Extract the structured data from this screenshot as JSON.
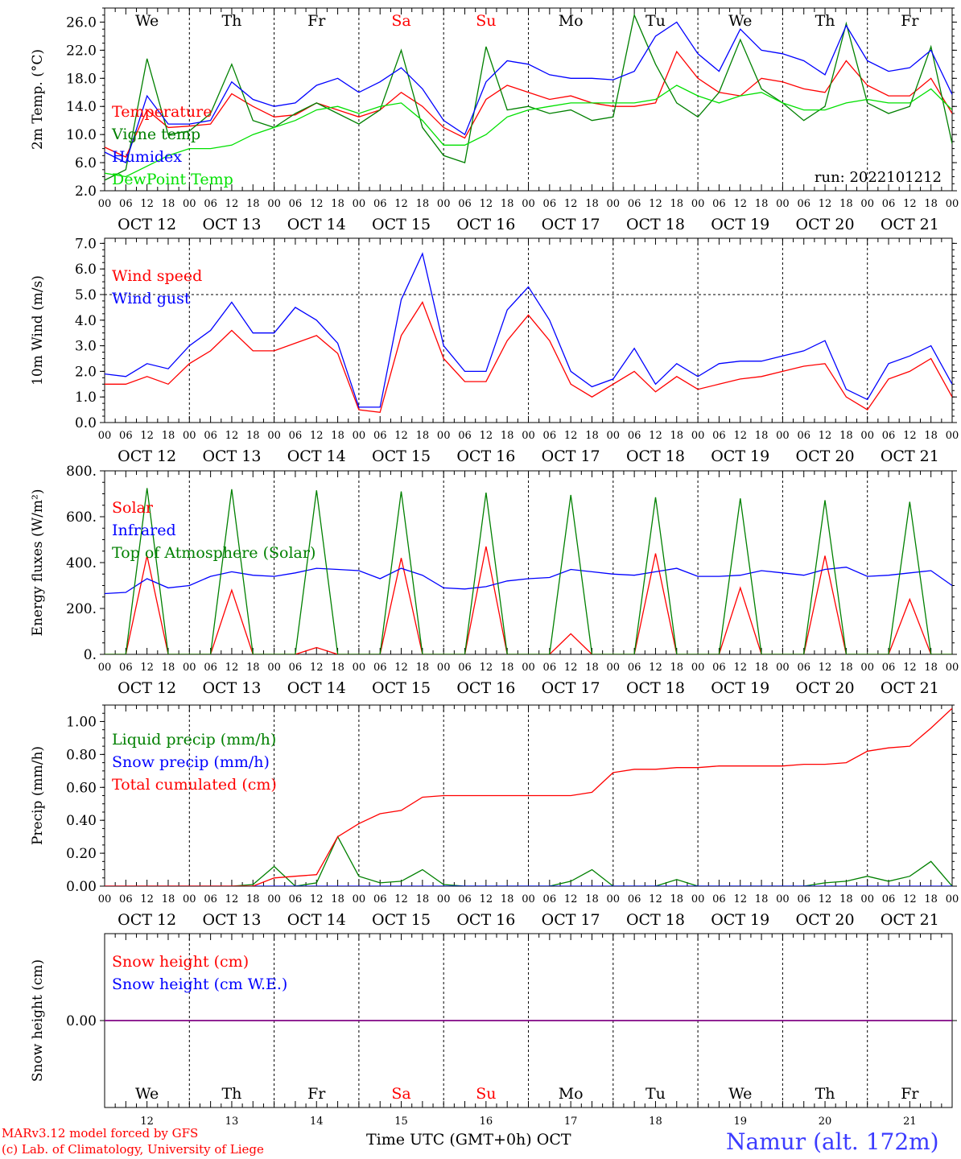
{
  "run_label": "run: 2022101212",
  "station": "Namur (alt. 172m)",
  "credits": [
    "MARv3.12 model forced by GFS",
    "(c) Lab. of Climatology, University of Liege"
  ],
  "x_axis_title": "Time UTC (GMT+0h)",
  "x_axis_month": "OCT",
  "hour_ticks": [
    "00",
    "06",
    "12",
    "18"
  ],
  "end_hour_tick": "00",
  "day_labels": [
    "OCT 12",
    "OCT 13",
    "OCT 14",
    "OCT 15",
    "OCT 16",
    "OCT 17",
    "OCT 18",
    "OCT 19",
    "OCT 20",
    "OCT 21"
  ],
  "weekdays": [
    "We",
    "Th",
    "Fr",
    "Sa",
    "Su",
    "Mo",
    "Tu",
    "We",
    "Th",
    "Fr"
  ],
  "weekday_colors": [
    "#000000",
    "#000000",
    "#000000",
    "#ff0000",
    "#ff0000",
    "#000000",
    "#000000",
    "#000000",
    "#000000",
    "#000000"
  ],
  "day_numbers": [
    "12",
    "13",
    "14",
    "15",
    "16",
    "17",
    "18",
    "19",
    "20",
    "21"
  ],
  "colors": {
    "red": "#ff0000",
    "green": "#008000",
    "blue": "#0000ff",
    "lightgreen": "#00e000",
    "purple": "#800080"
  },
  "chart_data": [
    {
      "type": "line",
      "ylabel": "2m Temp. (°C)",
      "ylim": [
        2,
        28
      ],
      "yticks": [
        "2.0",
        "6.0",
        "10.0",
        "14.0",
        "18.0",
        "22.0",
        "26.0"
      ],
      "ytick_values": [
        2,
        6,
        10,
        14,
        18,
        22,
        26
      ],
      "dashed_y": [],
      "legend_location": "left",
      "x": [
        0,
        6,
        12,
        18,
        24,
        30,
        36,
        42,
        48,
        54,
        60,
        66,
        72,
        78,
        84,
        90,
        96,
        102,
        108,
        114,
        120,
        126,
        132,
        138,
        144,
        150,
        156,
        162,
        168,
        174,
        180,
        186,
        192,
        198,
        204,
        210,
        216,
        222,
        228,
        234,
        240
      ],
      "series": [
        {
          "name": "Temperature",
          "color": "#ff0000",
          "values": [
            8.2,
            6.8,
            13.5,
            11.0,
            11.2,
            11.5,
            15.8,
            14.0,
            12.5,
            12.8,
            14.5,
            13.5,
            12.5,
            13.5,
            16.0,
            14.0,
            11.0,
            9.5,
            15.0,
            17.0,
            16.0,
            15.0,
            15.5,
            14.5,
            14.0,
            14.0,
            14.5,
            21.8,
            18.0,
            16.0,
            15.5,
            18.0,
            17.5,
            16.5,
            16.0,
            20.5,
            17.0,
            15.5,
            15.5,
            18.0,
            13.0
          ]
        },
        {
          "name": "Vigne temp",
          "color": "#008000",
          "values": [
            3.5,
            5.0,
            20.8,
            10.0,
            10.5,
            13.0,
            20.0,
            12.0,
            11.0,
            13.0,
            14.5,
            13.0,
            11.5,
            13.5,
            22.0,
            11.0,
            7.0,
            6.0,
            22.5,
            13.5,
            14.0,
            13.0,
            13.5,
            12.0,
            12.5,
            27.0,
            20.0,
            14.5,
            12.5,
            16.0,
            23.5,
            16.5,
            14.5,
            12.0,
            14.0,
            25.8,
            14.5,
            13.0,
            14.0,
            22.5,
            8.7
          ]
        },
        {
          "name": "Humidex",
          "color": "#0000ff",
          "values": [
            7.5,
            6.0,
            15.5,
            11.5,
            11.5,
            12.0,
            17.5,
            15.0,
            14.0,
            14.5,
            17.0,
            18.0,
            16.0,
            17.5,
            19.5,
            16.5,
            12.0,
            10.0,
            17.5,
            20.5,
            20.0,
            18.5,
            18.0,
            18.0,
            17.8,
            19.0,
            24.0,
            26.0,
            21.5,
            19.0,
            25.0,
            22.0,
            21.5,
            20.5,
            18.5,
            25.5,
            20.5,
            19.0,
            19.5,
            22.0,
            15.7
          ]
        },
        {
          "name": "DewPoint Temp",
          "color": "#00e000",
          "values": [
            4.5,
            4.0,
            5.5,
            7.0,
            8.0,
            8.0,
            8.5,
            10.0,
            11.0,
            12.0,
            13.5,
            14.0,
            13.0,
            14.0,
            14.5,
            12.0,
            8.5,
            8.5,
            10.0,
            12.5,
            13.5,
            14.0,
            14.5,
            14.5,
            14.5,
            14.5,
            15.0,
            17.0,
            15.5,
            14.5,
            15.5,
            16.0,
            14.5,
            13.5,
            13.5,
            14.5,
            15.0,
            14.5,
            14.5,
            16.5,
            13.5
          ]
        }
      ]
    },
    {
      "type": "line",
      "ylabel": "10m Wind (m/s)",
      "ylim": [
        0,
        7.2
      ],
      "yticks": [
        "0.0",
        "1.0",
        "2.0",
        "3.0",
        "4.0",
        "5.0",
        "6.0",
        "7.0"
      ],
      "ytick_values": [
        0,
        1,
        2,
        3,
        4,
        5,
        6,
        7
      ],
      "dashed_y": [
        5
      ],
      "legend_location": "left",
      "x": [
        0,
        6,
        12,
        18,
        24,
        30,
        36,
        42,
        48,
        54,
        60,
        66,
        72,
        78,
        84,
        90,
        96,
        102,
        108,
        114,
        120,
        126,
        132,
        138,
        144,
        150,
        156,
        162,
        168,
        174,
        180,
        186,
        192,
        198,
        204,
        210,
        216,
        222,
        228,
        234,
        240
      ],
      "series": [
        {
          "name": "Wind speed",
          "color": "#ff0000",
          "values": [
            1.5,
            1.5,
            1.8,
            1.5,
            2.3,
            2.8,
            3.6,
            2.8,
            2.8,
            3.1,
            3.4,
            2.7,
            0.5,
            0.4,
            3.4,
            4.7,
            2.5,
            1.6,
            1.6,
            3.2,
            4.2,
            3.2,
            1.5,
            1.0,
            1.5,
            2.0,
            1.2,
            1.8,
            1.3,
            1.5,
            1.7,
            1.8,
            2.0,
            2.2,
            2.3,
            1.0,
            0.5,
            1.7,
            2.0,
            2.5,
            1.0
          ]
        },
        {
          "name": "Wind gust",
          "color": "#0000ff",
          "values": [
            1.9,
            1.8,
            2.3,
            2.1,
            3.0,
            3.6,
            4.7,
            3.5,
            3.5,
            4.5,
            4.0,
            3.1,
            0.6,
            0.6,
            4.8,
            6.6,
            3.0,
            2.0,
            2.0,
            4.4,
            5.3,
            4.0,
            2.0,
            1.4,
            1.7,
            2.9,
            1.5,
            2.3,
            1.8,
            2.3,
            2.4,
            2.4,
            2.6,
            2.8,
            3.2,
            1.3,
            0.9,
            2.3,
            2.6,
            3.0,
            1.5
          ]
        }
      ]
    },
    {
      "type": "line",
      "ylabel": "Energy fluxes (W/m²)",
      "ylim": [
        0,
        800
      ],
      "yticks": [
        "0.",
        "200.",
        "400.",
        "600.",
        "800."
      ],
      "ytick_values": [
        0,
        200,
        400,
        600,
        800
      ],
      "dashed_y": [],
      "legend_location": "left",
      "x": [
        0,
        6,
        12,
        18,
        24,
        30,
        36,
        42,
        48,
        54,
        60,
        66,
        72,
        78,
        84,
        90,
        96,
        102,
        108,
        114,
        120,
        126,
        132,
        138,
        144,
        150,
        156,
        162,
        168,
        174,
        180,
        186,
        192,
        198,
        204,
        210,
        216,
        222,
        228,
        234,
        240
      ],
      "series": [
        {
          "name": "Solar",
          "color": "#ff0000",
          "values": [
            0,
            0,
            430,
            0,
            0,
            0,
            280,
            0,
            0,
            0,
            30,
            0,
            0,
            0,
            420,
            0,
            0,
            0,
            470,
            0,
            0,
            0,
            90,
            0,
            0,
            0,
            440,
            0,
            0,
            0,
            290,
            0,
            0,
            0,
            430,
            0,
            0,
            0,
            240,
            0,
            0
          ]
        },
        {
          "name": "Infrared",
          "color": "#0000ff",
          "values": [
            265,
            270,
            330,
            290,
            300,
            340,
            360,
            345,
            340,
            355,
            375,
            370,
            365,
            330,
            375,
            345,
            290,
            285,
            295,
            320,
            330,
            335,
            370,
            360,
            350,
            345,
            360,
            375,
            340,
            340,
            345,
            365,
            355,
            345,
            370,
            380,
            340,
            345,
            355,
            365,
            300
          ]
        },
        {
          "name": "Top of Atmosphere (Solar)",
          "color": "#008000",
          "values": [
            0,
            0,
            725,
            0,
            0,
            0,
            720,
            0,
            0,
            0,
            715,
            0,
            0,
            0,
            710,
            0,
            0,
            0,
            705,
            0,
            0,
            0,
            695,
            0,
            0,
            0,
            685,
            0,
            0,
            0,
            680,
            0,
            0,
            0,
            672,
            0,
            0,
            0,
            665,
            0,
            0
          ]
        }
      ]
    },
    {
      "type": "line",
      "ylabel": "Precip (mm/h)",
      "ylim": [
        0,
        1.1
      ],
      "yticks": [
        "0.00",
        "0.20",
        "0.40",
        "0.60",
        "0.80",
        "1.00"
      ],
      "ytick_values": [
        0,
        0.2,
        0.4,
        0.6,
        0.8,
        1.0
      ],
      "dashed_y": [],
      "legend_location": "left",
      "x": [
        0,
        6,
        12,
        18,
        24,
        30,
        36,
        42,
        48,
        54,
        60,
        66,
        72,
        78,
        84,
        90,
        96,
        102,
        108,
        114,
        120,
        126,
        132,
        138,
        144,
        150,
        156,
        162,
        168,
        174,
        180,
        186,
        192,
        198,
        204,
        210,
        216,
        222,
        228,
        234,
        240
      ],
      "series": [
        {
          "name": "Liquid precip (mm/h)",
          "color": "#008000",
          "values": [
            0,
            0,
            0,
            0,
            0,
            0,
            0,
            0.01,
            0.12,
            0,
            0.02,
            0.3,
            0.06,
            0.02,
            0.03,
            0.1,
            0.01,
            0,
            0,
            0,
            0,
            0,
            0.03,
            0.1,
            0,
            0,
            0,
            0.04,
            0,
            0,
            0,
            0,
            0,
            0,
            0.02,
            0.03,
            0.06,
            0.03,
            0.06,
            0.15,
            0
          ]
        },
        {
          "name": "Snow precip (mm/h)",
          "color": "#0000ff",
          "values": [
            0,
            0,
            0,
            0,
            0,
            0,
            0,
            0,
            0,
            0,
            0,
            0,
            0,
            0,
            0,
            0,
            0,
            0,
            0,
            0,
            0,
            0,
            0,
            0,
            0,
            0,
            0,
            0,
            0,
            0,
            0,
            0,
            0,
            0,
            0,
            0,
            0,
            0,
            0,
            0,
            0
          ]
        },
        {
          "name": "Total cumulated (cm)",
          "color": "#ff0000",
          "values": [
            0,
            0,
            0,
            0,
            0,
            0,
            0,
            0,
            0.05,
            0.06,
            0.07,
            0.3,
            0.38,
            0.44,
            0.46,
            0.54,
            0.55,
            0.55,
            0.55,
            0.55,
            0.55,
            0.55,
            0.55,
            0.57,
            0.69,
            0.71,
            0.71,
            0.72,
            0.72,
            0.73,
            0.73,
            0.73,
            0.73,
            0.74,
            0.74,
            0.75,
            0.82,
            0.84,
            0.85,
            0.96,
            1.08
          ]
        }
      ]
    },
    {
      "type": "line",
      "ylabel": "Snow height (cm)",
      "ylim": [
        -1,
        1
      ],
      "yticks": [
        "0.00"
      ],
      "ytick_values": [
        0
      ],
      "dashed_y": [],
      "legend_location": "left",
      "x": [
        0,
        240
      ],
      "series": [
        {
          "name": "Snow height (cm)",
          "color": "#ff0000",
          "values": [
            0,
            0
          ]
        },
        {
          "name": "Snow height (cm W.E.)",
          "color": "#0000ff",
          "values": [
            0,
            0
          ]
        }
      ]
    }
  ]
}
